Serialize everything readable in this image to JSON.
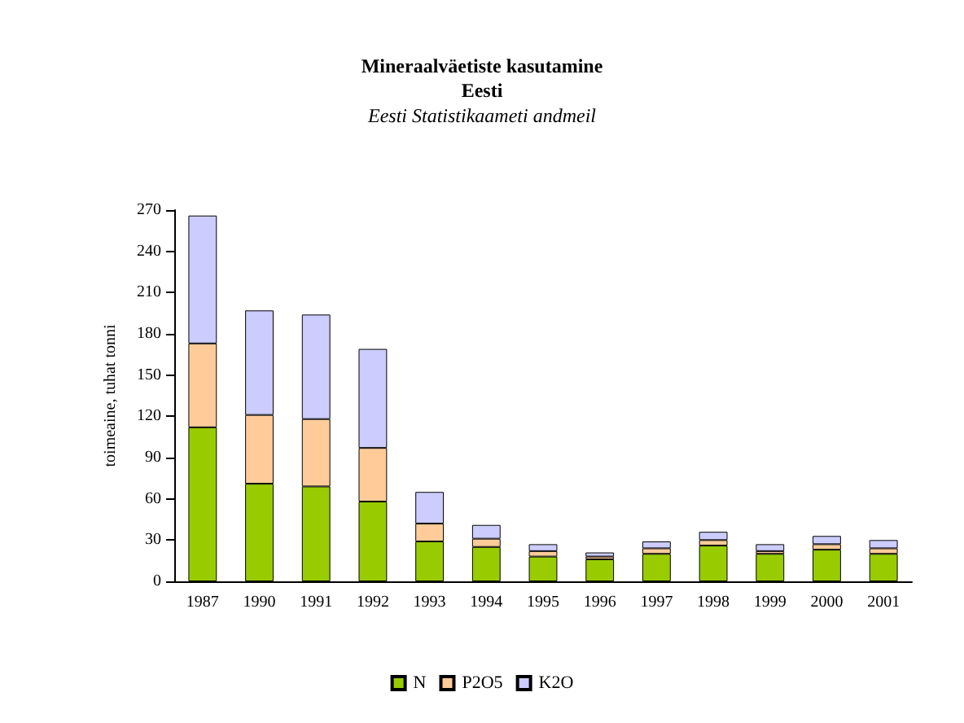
{
  "chart_data": {
    "type": "bar",
    "title": "Mineraalväetiste kasutamine\nEesti",
    "subtitle": "Eesti Statistikaameti andmeil",
    "ylabel": "toimeaine, tuhat tonni",
    "categories": [
      "1987",
      "1990",
      "1991",
      "1992",
      "1993",
      "1994",
      "1995",
      "1996",
      "1997",
      "1998",
      "1999",
      "2000",
      "2001"
    ],
    "stacked": true,
    "series": [
      {
        "name": "N",
        "color": "#99cc00",
        "values": [
          112,
          71,
          69,
          58,
          29,
          25,
          18,
          16,
          20,
          26,
          20,
          23,
          20
        ]
      },
      {
        "name": "P2O5",
        "color": "#ffcc99",
        "values": [
          61,
          50,
          49,
          39,
          13,
          6,
          4,
          2,
          4,
          4,
          2,
          4,
          4
        ]
      },
      {
        "name": "K2O",
        "color": "#ccccff",
        "values": [
          93,
          76,
          76,
          72,
          23,
          10,
          5,
          3,
          5,
          6,
          5,
          6,
          6
        ]
      }
    ],
    "ylim": [
      0,
      270
    ],
    "yticks": [
      0,
      30,
      60,
      90,
      120,
      150,
      180,
      210,
      240,
      270
    ],
    "grid": false,
    "legend": "bottom"
  }
}
